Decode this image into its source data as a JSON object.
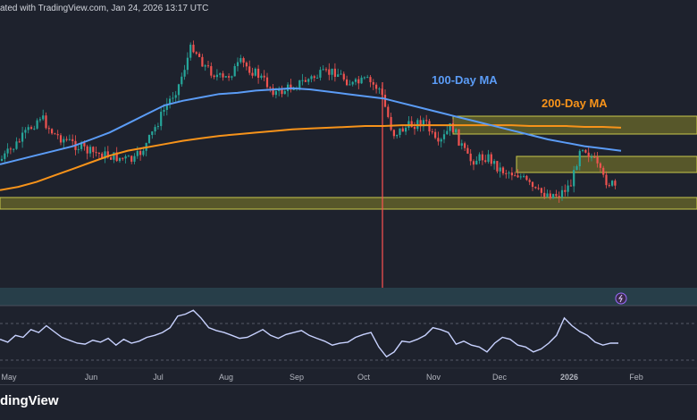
{
  "header": {
    "published_text": "ated with TradingView.com, Jan 24, 2026 13:17 UTC"
  },
  "brand": {
    "name": "dingView"
  },
  "colors": {
    "background": "#1e222d",
    "bull": "#26a69a",
    "bear": "#ef5350",
    "ma100": "#5b9cf6",
    "ma200": "#f7931a",
    "zone_fill": "#6b6a2a",
    "zone_border": "#c9c84a",
    "rsi_line": "#c8d2ff",
    "event_line": "#ff5252",
    "separator_band": "#2f5560"
  },
  "chart_data": {
    "type": "candlestick",
    "x": [
      "May",
      "Jun",
      "Jul",
      "Aug",
      "Sep",
      "Oct",
      "Nov",
      "Dec",
      "2026",
      "Feb"
    ],
    "annotations": {
      "ma100_label": "100-Day MA",
      "ma200_label": "200-Day MA"
    },
    "ma100": {
      "name": "100-Day MA",
      "values": [
        0.3,
        0.34,
        0.38,
        0.42,
        0.46,
        0.52,
        0.58,
        0.66,
        0.74,
        0.82,
        0.86,
        0.89,
        0.92,
        0.93,
        0.95,
        0.96,
        0.97,
        0.96,
        0.94,
        0.92,
        0.9,
        0.88,
        0.84,
        0.8,
        0.76,
        0.72,
        0.68,
        0.64,
        0.6,
        0.56,
        0.52,
        0.49,
        0.46,
        0.44,
        0.42
      ]
    },
    "ma200": {
      "name": "200-Day MA",
      "values": [
        0.1,
        0.14,
        0.2,
        0.28,
        0.36,
        0.44,
        0.52,
        0.58,
        0.62,
        0.66,
        0.7,
        0.73,
        0.76,
        0.78,
        0.8,
        0.82,
        0.84,
        0.85,
        0.86,
        0.87,
        0.88,
        0.88,
        0.89,
        0.89,
        0.89,
        0.89,
        0.89,
        0.89,
        0.89,
        0.88,
        0.88,
        0.88,
        0.87,
        0.87,
        0.86
      ]
    },
    "rsi": {
      "values": [
        48,
        45,
        52,
        50,
        58,
        55,
        62,
        56,
        50,
        47,
        44,
        43,
        47,
        45,
        49,
        42,
        48,
        44,
        46,
        50,
        52,
        55,
        60,
        72,
        74,
        78,
        70,
        60,
        57,
        55,
        52,
        49,
        50,
        54,
        58,
        52,
        49,
        53,
        55,
        57,
        52,
        49,
        46,
        42,
        44,
        45,
        50,
        53,
        55,
        40,
        30,
        35,
        46,
        45,
        48,
        52,
        60,
        58,
        55,
        43,
        46,
        42,
        40,
        35,
        44,
        50,
        48,
        42,
        40,
        35,
        38,
        44,
        52,
        70,
        62,
        56,
        52,
        45,
        42,
        44,
        44
      ]
    },
    "zones": [
      {
        "name": "support",
        "from": 0.02,
        "to": 0.07
      },
      {
        "name": "resistance-mid",
        "from": 0.44,
        "to": 0.52
      },
      {
        "name": "resistance-upper",
        "from": 0.64,
        "to": 0.71
      }
    ]
  }
}
